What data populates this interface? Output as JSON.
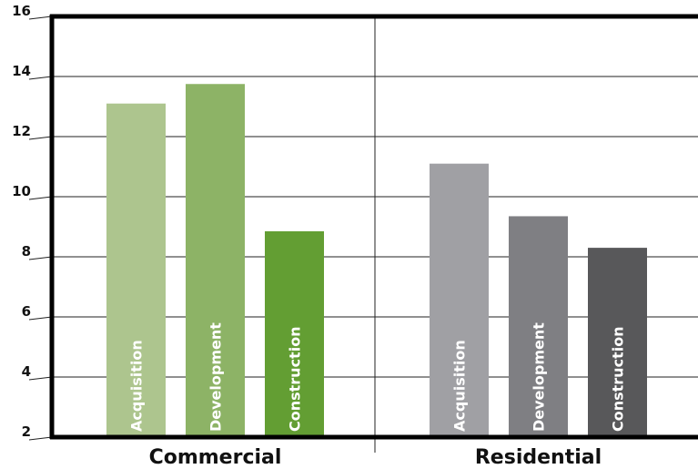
{
  "chart_data": {
    "type": "bar",
    "title": "",
    "xlabel": "",
    "ylabel": "",
    "ylim": [
      2,
      16
    ],
    "yticks": [
      2,
      4,
      6,
      8,
      10,
      12,
      14,
      16
    ],
    "grid": true,
    "groups": [
      {
        "label": "Commercial",
        "bars": [
          {
            "label": "Acquisition",
            "value": 13.1,
            "color": "#adc58e"
          },
          {
            "label": "Development",
            "value": 13.75,
            "color": "#8db366"
          },
          {
            "label": "Construction",
            "value": 8.85,
            "color": "#639e33"
          }
        ]
      },
      {
        "label": "Residential",
        "bars": [
          {
            "label": "Acquisition",
            "value": 11.1,
            "color": "#a0a0a4"
          },
          {
            "label": "Development",
            "value": 9.35,
            "color": "#7f7f83"
          },
          {
            "label": "Construction",
            "value": 8.3,
            "color": "#58585a"
          }
        ]
      }
    ]
  }
}
